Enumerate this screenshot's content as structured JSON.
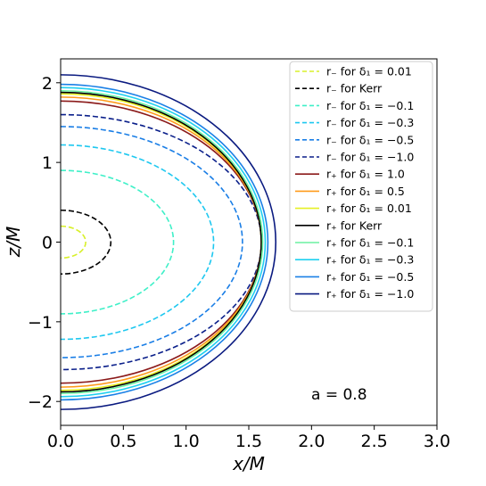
{
  "chart_data": {
    "type": "line",
    "title": "",
    "xlabel": "x/M",
    "ylabel": "z/M",
    "xlim": [
      0,
      3
    ],
    "ylim": [
      -2.3,
      2.3
    ],
    "xticks": [
      "0.0",
      "0.5",
      "1.0",
      "1.5",
      "2.0",
      "2.5",
      "3.0"
    ],
    "yticks": [
      "−2",
      "−1",
      "0",
      "1",
      "2"
    ],
    "grid": false,
    "legend_position": "top-right",
    "annotation": "a = 0.8",
    "series": [
      {
        "name": "r₋ for δ₁ = 0.01",
        "radius": 0.2,
        "color": "#d8f02a",
        "dash": true
      },
      {
        "name": "r₋ for Kerr",
        "radius": 0.4,
        "color": "#000000",
        "dash": true
      },
      {
        "name": "r₋ for δ₁ = −0.1",
        "radius": 0.9,
        "color": "#3ff0c8",
        "dash": true
      },
      {
        "name": "r₋ for δ₁ = −0.3",
        "radius": 1.22,
        "color": "#1ec8f0",
        "dash": true
      },
      {
        "name": "r₋ for δ₁ = −0.5",
        "radius": 1.45,
        "color": "#1a7ee6",
        "dash": true
      },
      {
        "name": "r₋ for δ₁ = −1.0",
        "radius": 1.6,
        "color": "#0a1f8a",
        "dash": true
      },
      {
        "name": "r₊ for δ₁ = 1.0",
        "radius": 1.77,
        "color": "#8b1a1a",
        "dash": false
      },
      {
        "name": "r₊ for δ₁ = 0.5",
        "radius": 1.82,
        "color": "#ff9a1a",
        "dash": false
      },
      {
        "name": "r₊ for δ₁ = 0.01",
        "radius": 1.86,
        "color": "#e6f024",
        "dash": false
      },
      {
        "name": "r₊ for Kerr",
        "radius": 1.88,
        "color": "#000000",
        "dash": false
      },
      {
        "name": "r₊ for δ₁ = −0.1",
        "radius": 1.9,
        "color": "#6af0a0",
        "dash": false
      },
      {
        "name": "r₊ for δ₁ = −0.3",
        "radius": 1.94,
        "color": "#1ed0f0",
        "dash": false
      },
      {
        "name": "r₊ for δ₁ = −0.5",
        "radius": 1.98,
        "color": "#1a80e6",
        "dash": false
      },
      {
        "name": "r₊ for δ₁ = −1.0",
        "radius": 2.1,
        "color": "#0a1a80",
        "dash": false
      }
    ]
  }
}
